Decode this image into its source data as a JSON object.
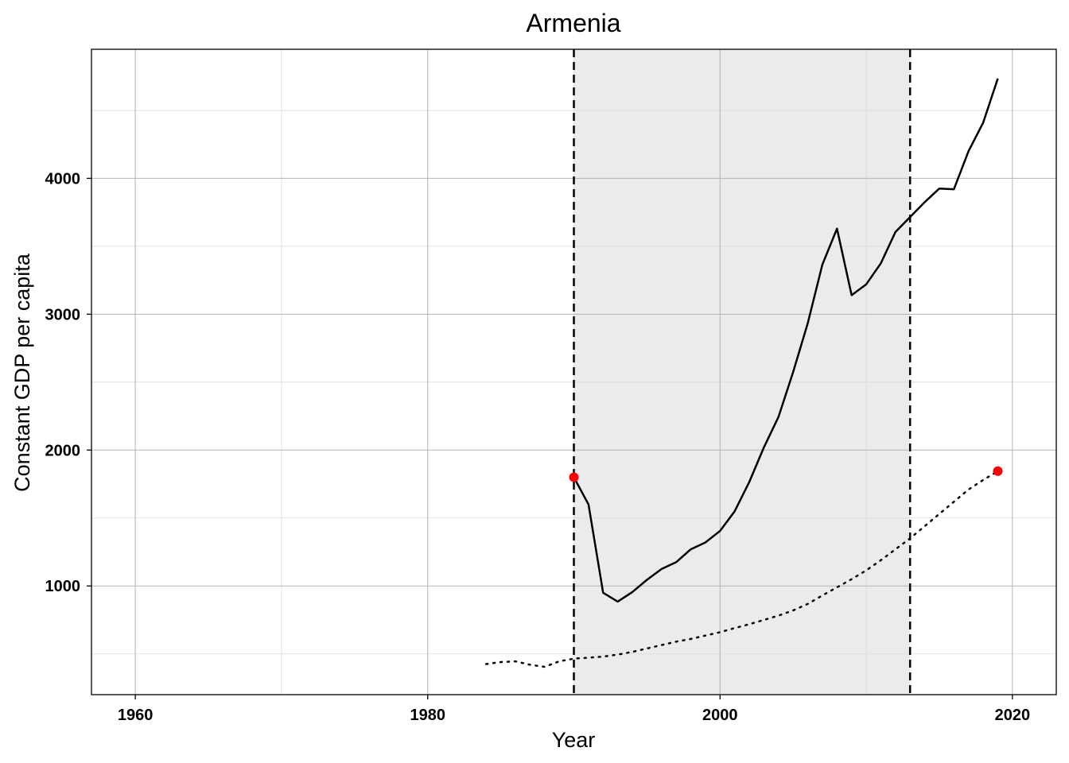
{
  "chart_data": {
    "type": "line",
    "title": "Armenia",
    "xlabel": "Year",
    "ylabel": "Constant GDP per capita",
    "xlim": [
      1957,
      2023
    ],
    "ylim": [
      200,
      4950
    ],
    "x_ticks": [
      1960,
      1980,
      2000,
      2020
    ],
    "y_ticks": [
      1000,
      2000,
      3000,
      4000
    ],
    "x_minor_grid": [
      1970,
      1990,
      2010
    ],
    "y_minor_grid": [
      500,
      1500,
      2500,
      3500,
      4500
    ],
    "grid": true,
    "legend": "none",
    "shaded_region": {
      "x_start": 1990,
      "x_end": 2013,
      "color": "#ebebeb"
    },
    "vlines": [
      {
        "x": 1990,
        "style": "dashed"
      },
      {
        "x": 2013,
        "style": "dashed"
      }
    ],
    "series": [
      {
        "style": "solid",
        "color": "#000000",
        "x": [
          1990,
          1991,
          1992,
          1993,
          1994,
          1995,
          1996,
          1997,
          1998,
          1999,
          2000,
          2001,
          2002,
          2003,
          2004,
          2005,
          2006,
          2007,
          2008,
          2009,
          2010,
          2011,
          2012,
          2013,
          2014,
          2015,
          2016,
          2017,
          2018,
          2019
        ],
        "y": [
          1800,
          1600,
          950,
          885,
          955,
          1045,
          1125,
          1175,
          1270,
          1320,
          1405,
          1550,
          1765,
          2020,
          2245,
          2575,
          2935,
          3365,
          3630,
          3140,
          3220,
          3375,
          3605,
          3715,
          3825,
          3925,
          3920,
          4200,
          4410,
          4735
        ]
      },
      {
        "style": "dotted",
        "color": "#000000",
        "x": [
          1984,
          1985,
          1986,
          1987,
          1988,
          1989,
          1990,
          1991,
          1992,
          1993,
          1994,
          1995,
          1996,
          1997,
          1998,
          1999,
          2000,
          2001,
          2002,
          2003,
          2004,
          2005,
          2006,
          2007,
          2008,
          2009,
          2010,
          2011,
          2012,
          2013,
          2014,
          2015,
          2016,
          2017,
          2018,
          2019
        ],
        "y": [
          425,
          440,
          445,
          420,
          405,
          445,
          465,
          472,
          480,
          495,
          515,
          540,
          565,
          590,
          610,
          635,
          660,
          690,
          718,
          750,
          782,
          820,
          868,
          930,
          990,
          1050,
          1115,
          1190,
          1270,
          1350,
          1440,
          1530,
          1620,
          1710,
          1780,
          1845
        ]
      }
    ],
    "points": [
      {
        "x": 1990,
        "y": 1800,
        "color": "#ff0000"
      },
      {
        "x": 2019,
        "y": 1845,
        "color": "#ff0000"
      }
    ]
  }
}
